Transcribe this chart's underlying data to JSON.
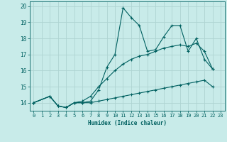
{
  "xlabel": "Humidex (Indice chaleur)",
  "background_color": "#c8ebe9",
  "grid_color": "#aed4d2",
  "line_color": "#006060",
  "xlim": [
    -0.5,
    23.5
  ],
  "ylim": [
    13.5,
    20.3
  ],
  "yticks": [
    14,
    15,
    16,
    17,
    18,
    19,
    20
  ],
  "xticks": [
    0,
    1,
    2,
    3,
    4,
    5,
    6,
    7,
    8,
    9,
    10,
    11,
    12,
    13,
    14,
    15,
    16,
    17,
    18,
    19,
    20,
    21,
    22,
    23
  ],
  "series": [
    {
      "x": [
        0,
        2,
        3,
        4,
        5,
        6,
        7,
        8,
        9,
        10,
        11,
        12,
        13,
        14,
        15,
        16,
        17,
        18,
        19,
        20,
        21,
        22
      ],
      "y": [
        14.0,
        14.4,
        13.8,
        13.7,
        14.0,
        14.0,
        14.1,
        14.8,
        16.2,
        17.0,
        19.9,
        19.3,
        18.8,
        17.2,
        17.3,
        18.1,
        18.8,
        18.8,
        17.2,
        18.0,
        16.7,
        16.1
      ]
    },
    {
      "x": [
        0,
        2,
        3,
        4,
        5,
        6,
        7,
        8,
        9,
        10,
        11,
        12,
        13,
        14,
        15,
        16,
        17,
        18,
        19,
        20,
        21,
        22
      ],
      "y": [
        14.0,
        14.4,
        13.8,
        13.7,
        14.0,
        14.0,
        14.0,
        14.1,
        14.2,
        14.3,
        14.4,
        14.5,
        14.6,
        14.7,
        14.8,
        14.9,
        15.0,
        15.1,
        15.2,
        15.3,
        15.4,
        15.0
      ]
    },
    {
      "x": [
        0,
        2,
        3,
        4,
        5,
        6,
        7,
        8,
        9,
        10,
        11,
        12,
        13,
        14,
        15,
        16,
        17,
        18,
        19,
        20,
        21,
        22
      ],
      "y": [
        14.0,
        14.4,
        13.8,
        13.7,
        14.0,
        14.1,
        14.4,
        15.0,
        15.5,
        16.0,
        16.4,
        16.7,
        16.9,
        17.0,
        17.2,
        17.4,
        17.5,
        17.6,
        17.5,
        17.7,
        17.2,
        16.1
      ]
    }
  ]
}
